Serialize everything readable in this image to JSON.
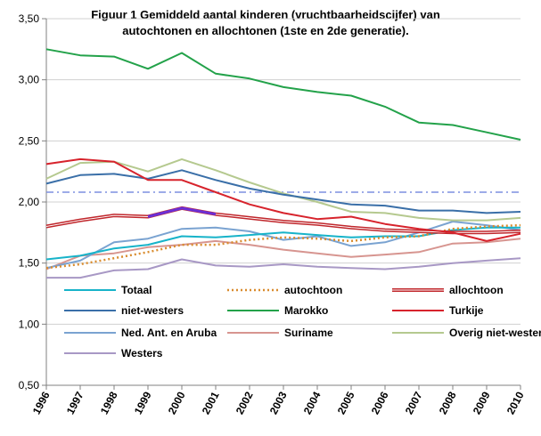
{
  "chart_data": {
    "type": "line",
    "title_line1": "Figuur 1  Gemiddeld aantal kinderen  (vruchtbaarheidscijfer) van",
    "title_line2": "autochtonen en allochtonen (1ste en 2de generatie).",
    "xlabel": "",
    "ylabel": "",
    "ylim": [
      0.5,
      3.5
    ],
    "y_ticks": [
      "0,50",
      "1,00",
      "1,50",
      "2,00",
      "2,50",
      "3,00",
      "3,50"
    ],
    "y_tick_values": [
      0.5,
      1.0,
      1.5,
      2.0,
      2.5,
      3.0,
      3.5
    ],
    "x": [
      "1996",
      "1997",
      "1998",
      "1999",
      "2000",
      "2001",
      "2002",
      "2003",
      "2004",
      "2005",
      "2006",
      "2007",
      "2008",
      "2009",
      "2010"
    ],
    "reference_line": 2.08,
    "grid": "horizontal",
    "legend_position": "bottom-inside",
    "series": [
      {
        "name": "Totaal",
        "color": "#17b3c9",
        "style": "solid",
        "values": [
          1.53,
          1.56,
          1.62,
          1.65,
          1.72,
          1.71,
          1.73,
          1.75,
          1.73,
          1.71,
          1.72,
          1.72,
          1.77,
          1.79,
          1.79
        ]
      },
      {
        "name": "autochtoon",
        "color": "#d98c2e",
        "style": "dotted",
        "values": [
          1.46,
          1.49,
          1.54,
          1.59,
          1.65,
          1.65,
          1.69,
          1.71,
          1.7,
          1.68,
          1.71,
          1.72,
          1.78,
          1.8,
          1.81
        ]
      },
      {
        "name": "allochtoon",
        "color": "#c0262b",
        "style": "double",
        "values": [
          1.8,
          1.85,
          1.89,
          1.88,
          1.95,
          1.9,
          1.87,
          1.84,
          1.82,
          1.79,
          1.77,
          1.76,
          1.75,
          1.75,
          1.76
        ]
      },
      {
        "name": "niet-westers",
        "color": "#3a6fa8",
        "style": "solid",
        "values": [
          2.15,
          2.22,
          2.23,
          2.19,
          2.26,
          2.18,
          2.11,
          2.06,
          2.02,
          1.98,
          1.97,
          1.93,
          1.93,
          1.91,
          1.92
        ]
      },
      {
        "name": "Marokko",
        "color": "#23a24a",
        "style": "solid",
        "values": [
          3.25,
          3.2,
          3.19,
          3.09,
          3.22,
          3.05,
          3.01,
          2.94,
          2.9,
          2.87,
          2.78,
          2.65,
          2.63,
          2.57,
          2.51
        ]
      },
      {
        "name": "Turkije",
        "color": "#d7232c",
        "style": "solid",
        "values": [
          2.31,
          2.35,
          2.33,
          2.18,
          2.18,
          2.08,
          1.98,
          1.91,
          1.86,
          1.88,
          1.82,
          1.78,
          1.75,
          1.68,
          1.74
        ]
      },
      {
        "name": "Ned. Ant. en Aruba",
        "color": "#7aa3d1",
        "style": "solid",
        "values": [
          1.46,
          1.52,
          1.67,
          1.7,
          1.78,
          1.79,
          1.76,
          1.69,
          1.72,
          1.64,
          1.67,
          1.75,
          1.84,
          1.81,
          1.77
        ]
      },
      {
        "name": "Suriname",
        "color": "#d79590",
        "style": "solid",
        "values": [
          1.45,
          1.56,
          1.58,
          1.63,
          1.65,
          1.68,
          1.65,
          1.61,
          1.58,
          1.55,
          1.57,
          1.59,
          1.66,
          1.67,
          1.7
        ]
      },
      {
        "name": "Overig niet-westers",
        "color": "#b5c98f",
        "style": "solid",
        "values": [
          2.19,
          2.32,
          2.33,
          2.25,
          2.35,
          2.26,
          2.16,
          2.07,
          2.0,
          1.92,
          1.91,
          1.87,
          1.85,
          1.85,
          1.87
        ]
      },
      {
        "name": "Westers",
        "color": "#a898c5",
        "style": "solid",
        "values": [
          1.38,
          1.38,
          1.44,
          1.45,
          1.53,
          1.48,
          1.47,
          1.49,
          1.47,
          1.46,
          1.45,
          1.47,
          1.5,
          1.52,
          1.54
        ]
      }
    ],
    "reference_color": "#7d8fe0",
    "highlight_color": "#6b2fd6"
  }
}
